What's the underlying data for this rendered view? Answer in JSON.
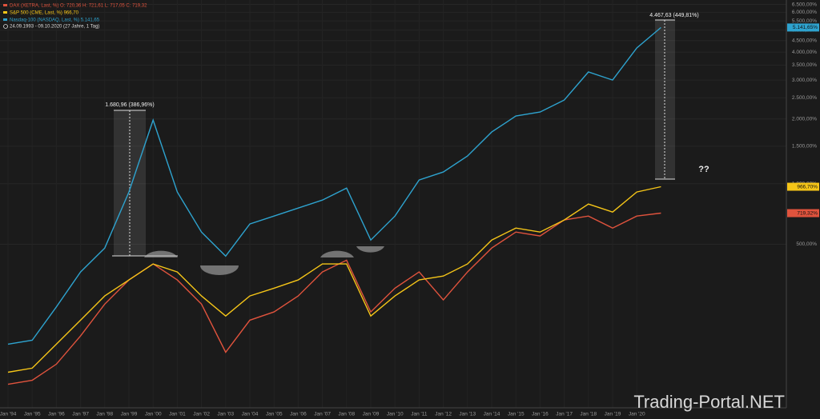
{
  "chart_data": {
    "type": "line",
    "log_scale": true,
    "grid": true,
    "period": "24.09.1993 - 09.10.2020  (27 Jahre, 1 Tag)",
    "annotations": [
      "1.680,96 (386,96%)",
      "4.467,63 (449,81%)",
      "??"
    ],
    "watermark": "Trading-Portal.NET",
    "categories": [
      "Jan '94",
      "Jan '95",
      "Jan '96",
      "Jan '97",
      "Jan '98",
      "Jan '99",
      "Jan '00",
      "Jan '01",
      "Jan '02",
      "Jan '03",
      "Jan '04",
      "Jan '05",
      "Jan '06",
      "Jan '07",
      "Jan '08",
      "Jan '09",
      "Jan '10",
      "Jan '11",
      "Jan '12",
      "Jan '13",
      "Jan '14",
      "Jan '15",
      "Jan '16",
      "Jan '17",
      "Jan '18",
      "Jan '19",
      "Jan '20",
      null
    ],
    "ylim": [
      17,
      6800
    ],
    "yticks": [
      {
        "value": 500,
        "label": "500,00%"
      },
      {
        "value": 1000,
        "label": "1.000,00%"
      },
      {
        "value": 1500,
        "label": "1.500,00%"
      },
      {
        "value": 2000,
        "label": "2.000,00%"
      },
      {
        "value": 2500,
        "label": "2.500,00%"
      },
      {
        "value": 3000,
        "label": "3.000,00%"
      },
      {
        "value": 3500,
        "label": "3.500,00%"
      },
      {
        "value": 4000,
        "label": "4.000,00%"
      },
      {
        "value": 4500,
        "label": "4.500,00%"
      },
      {
        "value": 5000,
        "label": "5.000,00%"
      },
      {
        "value": 5500,
        "label": "5.500,00%"
      },
      {
        "value": 6000,
        "label": "6.000,00%"
      },
      {
        "value": 6500,
        "label": "6.500,00%"
      }
    ],
    "series": [
      {
        "name": "DAX (XETRA, Last, %)  O: 720,36  H: 721,61  L: 717,05  C: 719,32",
        "color": "#e0533d",
        "values": [
          48,
          54,
          81,
          140,
          230,
          320,
          393,
          320,
          230,
          104,
          181,
          205,
          258,
          355,
          412,
          205,
          287,
          355,
          244,
          355,
          478,
          578,
          552,
          665,
          696,
          606,
          696,
          719.32
        ],
        "value_labels": [
          null,
          null,
          null,
          null,
          null,
          null,
          null,
          null,
          null,
          null,
          null,
          null,
          null,
          null,
          null,
          null,
          null,
          null,
          null,
          null,
          null,
          null,
          null,
          null,
          null,
          null,
          null,
          "719,32%"
        ]
      },
      {
        "name": "S&P 500 (CME, Last, %)  966,70",
        "color": "#f5c518",
        "values": [
          67,
          74,
          121,
          181,
          258,
          320,
          393,
          355,
          258,
          193,
          258,
          287,
          320,
          393,
          393,
          193,
          258,
          320,
          337,
          393,
          526,
          606,
          578,
          665,
          797,
          728,
          912,
          966.7
        ],
        "value_labels": [
          null,
          null,
          null,
          null,
          null,
          null,
          null,
          null,
          null,
          null,
          null,
          null,
          null,
          null,
          null,
          null,
          null,
          null,
          null,
          null,
          null,
          null,
          null,
          null,
          null,
          null,
          null,
          "966,70%"
        ]
      },
      {
        "name": "Nasdaq-100 (NASDAQ, Last, %)  5.141,65",
        "color": "#2ea3cf",
        "values": [
          121,
          130,
          221,
          355,
          478,
          912,
          1978,
          912,
          578,
          433,
          635,
          696,
          762,
          834,
          953,
          526,
          696,
          1041,
          1136,
          1350,
          1743,
          2063,
          2151,
          2438,
          3259,
          3000,
          4170,
          5141.65
        ],
        "value_labels": [
          null,
          null,
          null,
          null,
          null,
          null,
          null,
          null,
          null,
          null,
          null,
          null,
          null,
          null,
          null,
          null,
          null,
          null,
          null,
          null,
          null,
          null,
          null,
          null,
          null,
          null,
          null,
          "5.141,65%"
        ]
      }
    ]
  }
}
